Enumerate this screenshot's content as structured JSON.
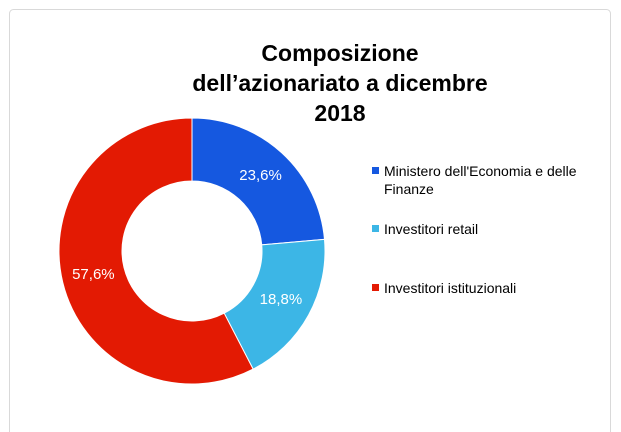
{
  "chart_data": {
    "type": "donut",
    "title": "Composizione dell’azionariato a dicembre 2018",
    "categories": [
      "Ministero dell'Economia e delle Finanze",
      "Investitori retail",
      "Investitori istituzionali"
    ],
    "values": [
      23.6,
      18.8,
      57.6
    ],
    "value_labels": [
      "23,6%",
      "18,8%",
      "57,6%"
    ],
    "colors": [
      "#1558e0",
      "#3cb6e6",
      "#e31a03"
    ],
    "legend": "right"
  }
}
